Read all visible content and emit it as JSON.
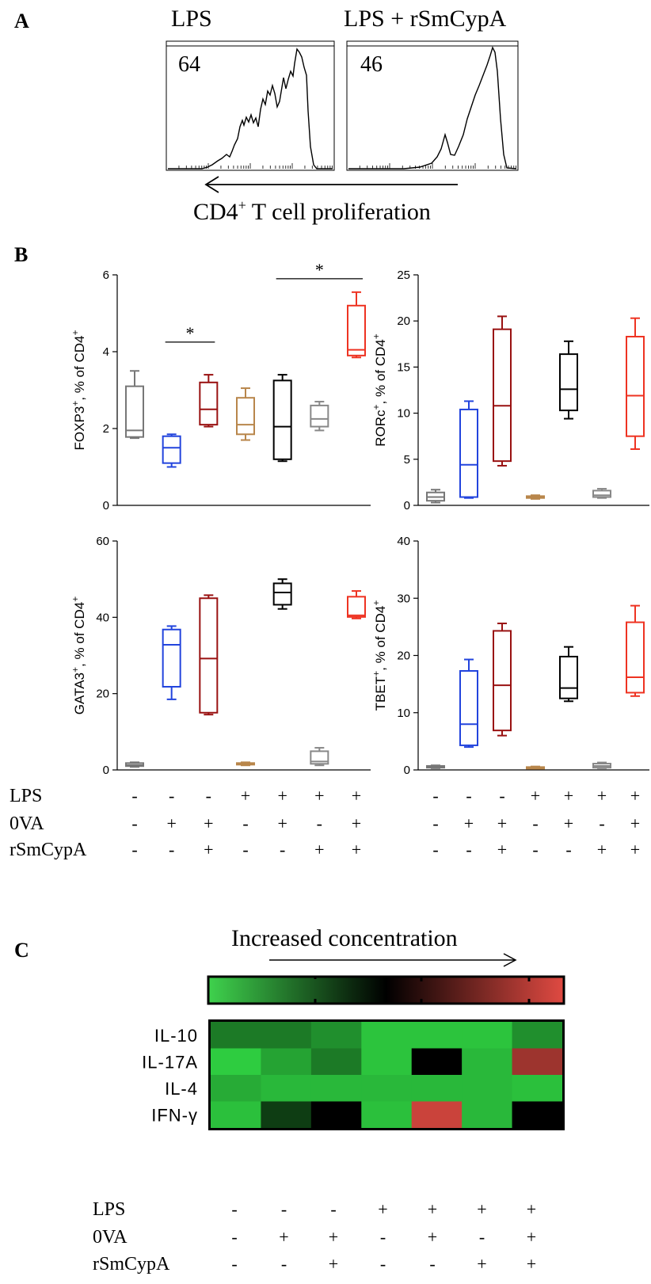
{
  "panels": {
    "a_label": "A",
    "b_label": "B",
    "c_label": "C"
  },
  "panel_a": {
    "left_title": "LPS",
    "right_title": "LPS + rSmCypA",
    "left_value": "64",
    "right_value": "46",
    "axis_label_main": "CD4",
    "axis_label_sup": "+",
    "axis_label_rest": " T cell proliferation"
  },
  "condition_rows": [
    {
      "name": "LPS",
      "signs": [
        "-",
        "-",
        "-",
        "+",
        "+",
        "+",
        "+"
      ]
    },
    {
      "name": "0VA",
      "signs": [
        "-",
        "+",
        "+",
        "-",
        "+",
        "-",
        "+"
      ]
    },
    {
      "name": "rSmCypA",
      "signs": [
        "-",
        "-",
        "+",
        "-",
        "-",
        "+",
        "+"
      ]
    }
  ],
  "heatmap": {
    "scale_title": "Increased concentration",
    "row_labels": [
      "IL-10",
      "IL-17A",
      "IL-4",
      "IFN-γ"
    ],
    "colors": {
      "low": "#2ecc40",
      "mid": "#000000",
      "high": "#e04a42"
    },
    "values": [
      [
        0.2,
        0.2,
        0.15,
        0.02,
        0.02,
        0.02,
        0.15
      ],
      [
        0.0,
        0.1,
        0.2,
        0.02,
        0.5,
        0.05,
        0.85
      ],
      [
        0.08,
        0.05,
        0.05,
        0.05,
        0.05,
        0.05,
        0.03
      ],
      [
        0.03,
        0.35,
        0.5,
        0.03,
        0.95,
        0.05,
        0.5
      ]
    ]
  },
  "chart_data": [
    {
      "type": "box",
      "ylabel": "FOXP3+, % of CD4+",
      "ylabel_main": "FOXP3",
      "ylabel_sup": "+",
      "ylabel_rest": ", % of CD4",
      "ylabel_sup2": "+",
      "ylim": [
        0,
        6
      ],
      "yticks": [
        "0",
        "2",
        "4",
        "6"
      ],
      "groups": [
        {
          "min": 1.75,
          "q1": 1.78,
          "median": 1.95,
          "q3": 3.1,
          "max": 3.5,
          "color": "#777777"
        },
        {
          "min": 1.0,
          "q1": 1.1,
          "median": 1.5,
          "q3": 1.8,
          "max": 1.85,
          "color": "#2244dd"
        },
        {
          "min": 2.05,
          "q1": 2.1,
          "median": 2.5,
          "q3": 3.2,
          "max": 3.4,
          "color": "#991111"
        },
        {
          "min": 1.7,
          "q1": 1.85,
          "median": 2.1,
          "q3": 2.8,
          "max": 3.05,
          "color": "#b8864b"
        },
        {
          "min": 1.15,
          "q1": 1.2,
          "median": 2.05,
          "q3": 3.25,
          "max": 3.4,
          "color": "#000000"
        },
        {
          "min": 1.95,
          "q1": 2.05,
          "median": 2.25,
          "q3": 2.6,
          "max": 2.7,
          "color": "#888888"
        },
        {
          "min": 3.85,
          "q1": 3.9,
          "median": 4.05,
          "q3": 5.2,
          "max": 5.55,
          "color": "#ee3322"
        }
      ],
      "significance": [
        {
          "from": 1,
          "to": 2,
          "y": 4.25,
          "label": "*"
        },
        {
          "from": 4,
          "to": 6,
          "y": 5.9,
          "label": "*"
        }
      ]
    },
    {
      "type": "box",
      "ylabel": "RORc+, % of CD4+",
      "ylabel_main": "RORc",
      "ylabel_sup": "+",
      "ylabel_rest": ", % of CD4",
      "ylabel_sup2": "+",
      "ylim": [
        0,
        25
      ],
      "yticks": [
        "0",
        "5",
        "10",
        "15",
        "20",
        "25"
      ],
      "groups": [
        {
          "min": 0.3,
          "q1": 0.5,
          "median": 0.9,
          "q3": 1.4,
          "max": 1.7,
          "color": "#777777"
        },
        {
          "min": 0.8,
          "q1": 0.9,
          "median": 4.4,
          "q3": 10.4,
          "max": 11.3,
          "color": "#2244dd"
        },
        {
          "min": 4.3,
          "q1": 4.8,
          "median": 10.8,
          "q3": 19.1,
          "max": 20.5,
          "color": "#991111"
        },
        {
          "min": 0.7,
          "q1": 0.8,
          "median": 0.9,
          "q3": 1.0,
          "max": 1.1,
          "color": "#b8864b"
        },
        {
          "min": 9.4,
          "q1": 10.3,
          "median": 12.6,
          "q3": 16.4,
          "max": 17.8,
          "color": "#000000"
        },
        {
          "min": 0.8,
          "q1": 0.9,
          "median": 1.1,
          "q3": 1.6,
          "max": 1.8,
          "color": "#888888"
        },
        {
          "min": 6.1,
          "q1": 7.5,
          "median": 11.9,
          "q3": 18.3,
          "max": 20.3,
          "color": "#ee3322"
        }
      ],
      "significance": []
    },
    {
      "type": "box",
      "ylabel": "GATA3+, % of CD4+",
      "ylabel_main": "GATA3",
      "ylabel_sup": "+",
      "ylabel_rest": ", % of CD4",
      "ylabel_sup2": "+",
      "ylim": [
        0,
        60
      ],
      "yticks": [
        "0",
        "20",
        "40",
        "60"
      ],
      "groups": [
        {
          "min": 0.8,
          "q1": 1.0,
          "median": 1.3,
          "q3": 1.8,
          "max": 2.0,
          "color": "#777777"
        },
        {
          "min": 18.5,
          "q1": 21.8,
          "median": 32.8,
          "q3": 36.8,
          "max": 37.7,
          "color": "#2244dd"
        },
        {
          "min": 14.5,
          "q1": 15.0,
          "median": 29.2,
          "q3": 45.0,
          "max": 45.8,
          "color": "#991111"
        },
        {
          "min": 1.2,
          "q1": 1.4,
          "median": 1.6,
          "q3": 1.8,
          "max": 2.0,
          "color": "#b8864b"
        },
        {
          "min": 42.2,
          "q1": 43.3,
          "median": 46.5,
          "q3": 48.9,
          "max": 50.0,
          "color": "#000000"
        },
        {
          "min": 1.2,
          "q1": 1.6,
          "median": 2.2,
          "q3": 4.9,
          "max": 5.8,
          "color": "#888888"
        },
        {
          "min": 39.7,
          "q1": 40.1,
          "median": 40.5,
          "q3": 45.4,
          "max": 46.9,
          "color": "#ee3322"
        }
      ],
      "significance": []
    },
    {
      "type": "box",
      "ylabel": "TBET+, % of CD4+",
      "ylabel_main": "TBET",
      "ylabel_sup": "+",
      "ylabel_rest": ", % of CD4",
      "ylabel_sup2": "+",
      "ylim": [
        0,
        40
      ],
      "yticks": [
        "0",
        "10",
        "20",
        "30",
        "40"
      ],
      "groups": [
        {
          "min": 0.3,
          "q1": 0.4,
          "median": 0.5,
          "q3": 0.7,
          "max": 0.8,
          "color": "#777777"
        },
        {
          "min": 4.0,
          "q1": 4.3,
          "median": 8.0,
          "q3": 17.3,
          "max": 19.3,
          "color": "#2244dd"
        },
        {
          "min": 6.0,
          "q1": 6.9,
          "median": 14.8,
          "q3": 24.3,
          "max": 25.6,
          "color": "#991111"
        },
        {
          "min": 0.2,
          "q1": 0.3,
          "median": 0.4,
          "q3": 0.5,
          "max": 0.6,
          "color": "#b8864b"
        },
        {
          "min": 12.0,
          "q1": 12.5,
          "median": 14.3,
          "q3": 19.8,
          "max": 21.5,
          "color": "#000000"
        },
        {
          "min": 0.3,
          "q1": 0.4,
          "median": 0.7,
          "q3": 1.1,
          "max": 1.3,
          "color": "#888888"
        },
        {
          "min": 12.9,
          "q1": 13.5,
          "median": 16.2,
          "q3": 25.8,
          "max": 28.7,
          "color": "#ee3322"
        }
      ],
      "significance": []
    }
  ]
}
